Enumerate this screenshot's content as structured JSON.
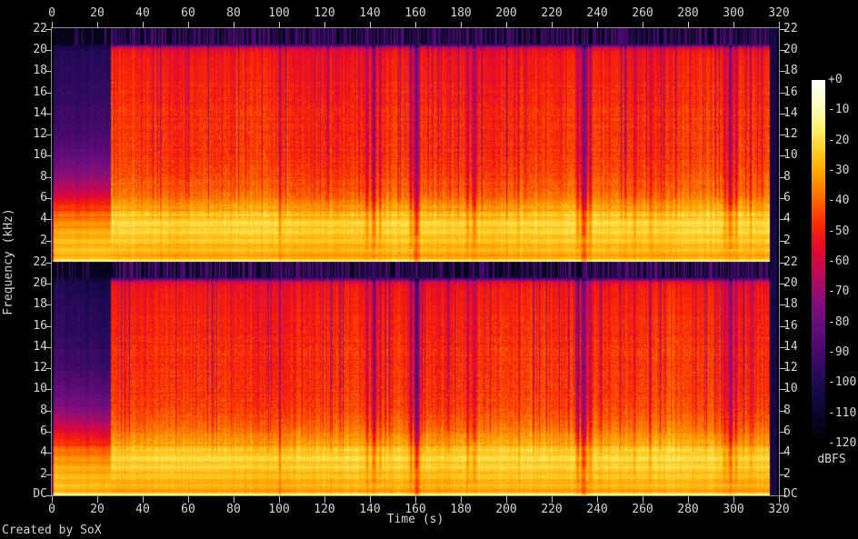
{
  "app": {
    "credit": "Created by SoX"
  },
  "axes": {
    "x": {
      "label": "Time (s)",
      "min": 0,
      "max": 320,
      "ticks": [
        0,
        20,
        40,
        60,
        80,
        100,
        120,
        140,
        160,
        180,
        200,
        220,
        240,
        260,
        280,
        300,
        320
      ]
    },
    "y": {
      "label": "Frequency (kHz)",
      "min_khz": 0,
      "max_khz": 22.05,
      "panel_ticks": [
        22,
        20,
        18,
        16,
        14,
        12,
        10,
        8,
        6,
        4,
        2
      ],
      "dc_label": "DC"
    },
    "colorbar": {
      "unit": "dBFS",
      "max_db": 0,
      "min_db": -120,
      "ticks": [
        "+0",
        "-10",
        "-20",
        "-30",
        "-40",
        "-50",
        "-60",
        "-70",
        "-80",
        "-90",
        "-100",
        "-110",
        "-120"
      ]
    }
  },
  "chart_data": {
    "type": "heatmap",
    "title": "",
    "description": "SoX stereo spectrogram: two stacked panels (one per audio channel), time 0-320 s, frequency DC-22.05 kHz, level -120..0 dBFS. Quiet intro 0-26 s, loud program 26-316 s with a ~20.4 kHz lowpass cutoff, bright 1.5-4.5 kHz energy band, and short quiet dropouts near 100, 140-145, 160, 183-186, 232-237, 296-301 s.",
    "panels": 2,
    "time_range_s": [
      0,
      320
    ],
    "content_end_s": 315.8,
    "freq_range_khz": [
      0,
      22.05
    ],
    "lowpass_khz": 20.4,
    "palette_stops": [
      [
        -120,
        "#000002"
      ],
      [
        -112,
        "#080526"
      ],
      [
        -104,
        "#140846"
      ],
      [
        -96,
        "#2d0a5f"
      ],
      [
        -88,
        "#500a6e"
      ],
      [
        -80,
        "#690d80"
      ],
      [
        -72,
        "#8c0e76"
      ],
      [
        -64,
        "#be0a5a"
      ],
      [
        -56,
        "#e40830"
      ],
      [
        -48,
        "#fa2800"
      ],
      [
        -40,
        "#ff6400"
      ],
      [
        -32,
        "#ff9b00"
      ],
      [
        -24,
        "#ffc81e"
      ],
      [
        -16,
        "#fff06e"
      ],
      [
        -8,
        "#ffffbe"
      ],
      [
        0,
        "#ffffff"
      ]
    ],
    "segments": [
      {
        "name": "intro",
        "t0": 0,
        "t1": 26,
        "col_noise_db": 3,
        "pix_noise_db": 3,
        "speckle_p": 0,
        "barcode_p": 0.1,
        "profile": [
          [
            0,
            -13
          ],
          [
            0.12,
            -16
          ],
          [
            0.3,
            -28
          ],
          [
            1,
            -27
          ],
          [
            2,
            -28
          ],
          [
            3,
            -31
          ],
          [
            4,
            -38
          ],
          [
            5,
            -48
          ],
          [
            6,
            -57
          ],
          [
            6.5,
            -62
          ],
          [
            7,
            -67
          ],
          [
            8,
            -74
          ],
          [
            9,
            -79
          ],
          [
            10,
            -84
          ],
          [
            12,
            -92
          ],
          [
            14,
            -95
          ],
          [
            16,
            -97
          ],
          [
            18,
            -99
          ],
          [
            19.5,
            -101
          ],
          [
            20.3,
            -104
          ],
          [
            20.6,
            -114
          ],
          [
            22.05,
            -115
          ]
        ]
      },
      {
        "name": "main",
        "t0": 26,
        "t1": 320,
        "col_noise_db": 4,
        "pix_noise_db": 5,
        "speckle_p": 0.03,
        "barcode_p": 0.55,
        "profile": [
          [
            0,
            -13
          ],
          [
            0.12,
            -16
          ],
          [
            0.3,
            -30
          ],
          [
            1,
            -28
          ],
          [
            2,
            -25
          ],
          [
            2.6,
            -23
          ],
          [
            3.4,
            -21
          ],
          [
            4.2,
            -24
          ],
          [
            5,
            -30
          ],
          [
            6,
            -36
          ],
          [
            7,
            -41
          ],
          [
            8,
            -44
          ],
          [
            10,
            -46.5
          ],
          [
            12,
            -47.5
          ],
          [
            14,
            -48
          ],
          [
            16,
            -49
          ],
          [
            18,
            -50.5
          ],
          [
            19.5,
            -52
          ],
          [
            20.1,
            -56
          ],
          [
            20.35,
            -75
          ],
          [
            20.55,
            -105
          ],
          [
            21,
            -114
          ],
          [
            22.05,
            -113
          ]
        ]
      }
    ],
    "gaps": [
      {
        "t": 100.4,
        "w": 0.7,
        "depth_db": 18,
        "reach": 0.45
      },
      {
        "t": 138.8,
        "w": 1.1,
        "depth_db": 16
      },
      {
        "t": 141.8,
        "w": 1.6,
        "depth_db": 22
      },
      {
        "t": 144.6,
        "w": 1.0,
        "depth_db": 15
      },
      {
        "t": 158.2,
        "w": 1.1,
        "depth_db": 20
      },
      {
        "t": 160.6,
        "w": 1.8,
        "depth_db": 34,
        "reach": 0.5
      },
      {
        "t": 183.2,
        "w": 1.1,
        "depth_db": 15
      },
      {
        "t": 186.0,
        "w": 1.4,
        "depth_db": 19
      },
      {
        "t": 205.5,
        "w": 0.8,
        "depth_db": 10
      },
      {
        "t": 231.6,
        "w": 1.3,
        "depth_db": 20
      },
      {
        "t": 234.2,
        "w": 2.0,
        "depth_db": 33,
        "reach": 0.5
      },
      {
        "t": 237.0,
        "w": 1.1,
        "depth_db": 17
      },
      {
        "t": 256.5,
        "w": 0.7,
        "depth_db": 12
      },
      {
        "t": 263.5,
        "w": 0.9,
        "depth_db": 12
      },
      {
        "t": 296.2,
        "w": 1.1,
        "depth_db": 16
      },
      {
        "t": 298.7,
        "w": 1.6,
        "depth_db": 25
      },
      {
        "t": 301.2,
        "w": 1.1,
        "depth_db": 16
      },
      {
        "t": 307.8,
        "w": 0.8,
        "depth_db": 11
      }
    ]
  }
}
